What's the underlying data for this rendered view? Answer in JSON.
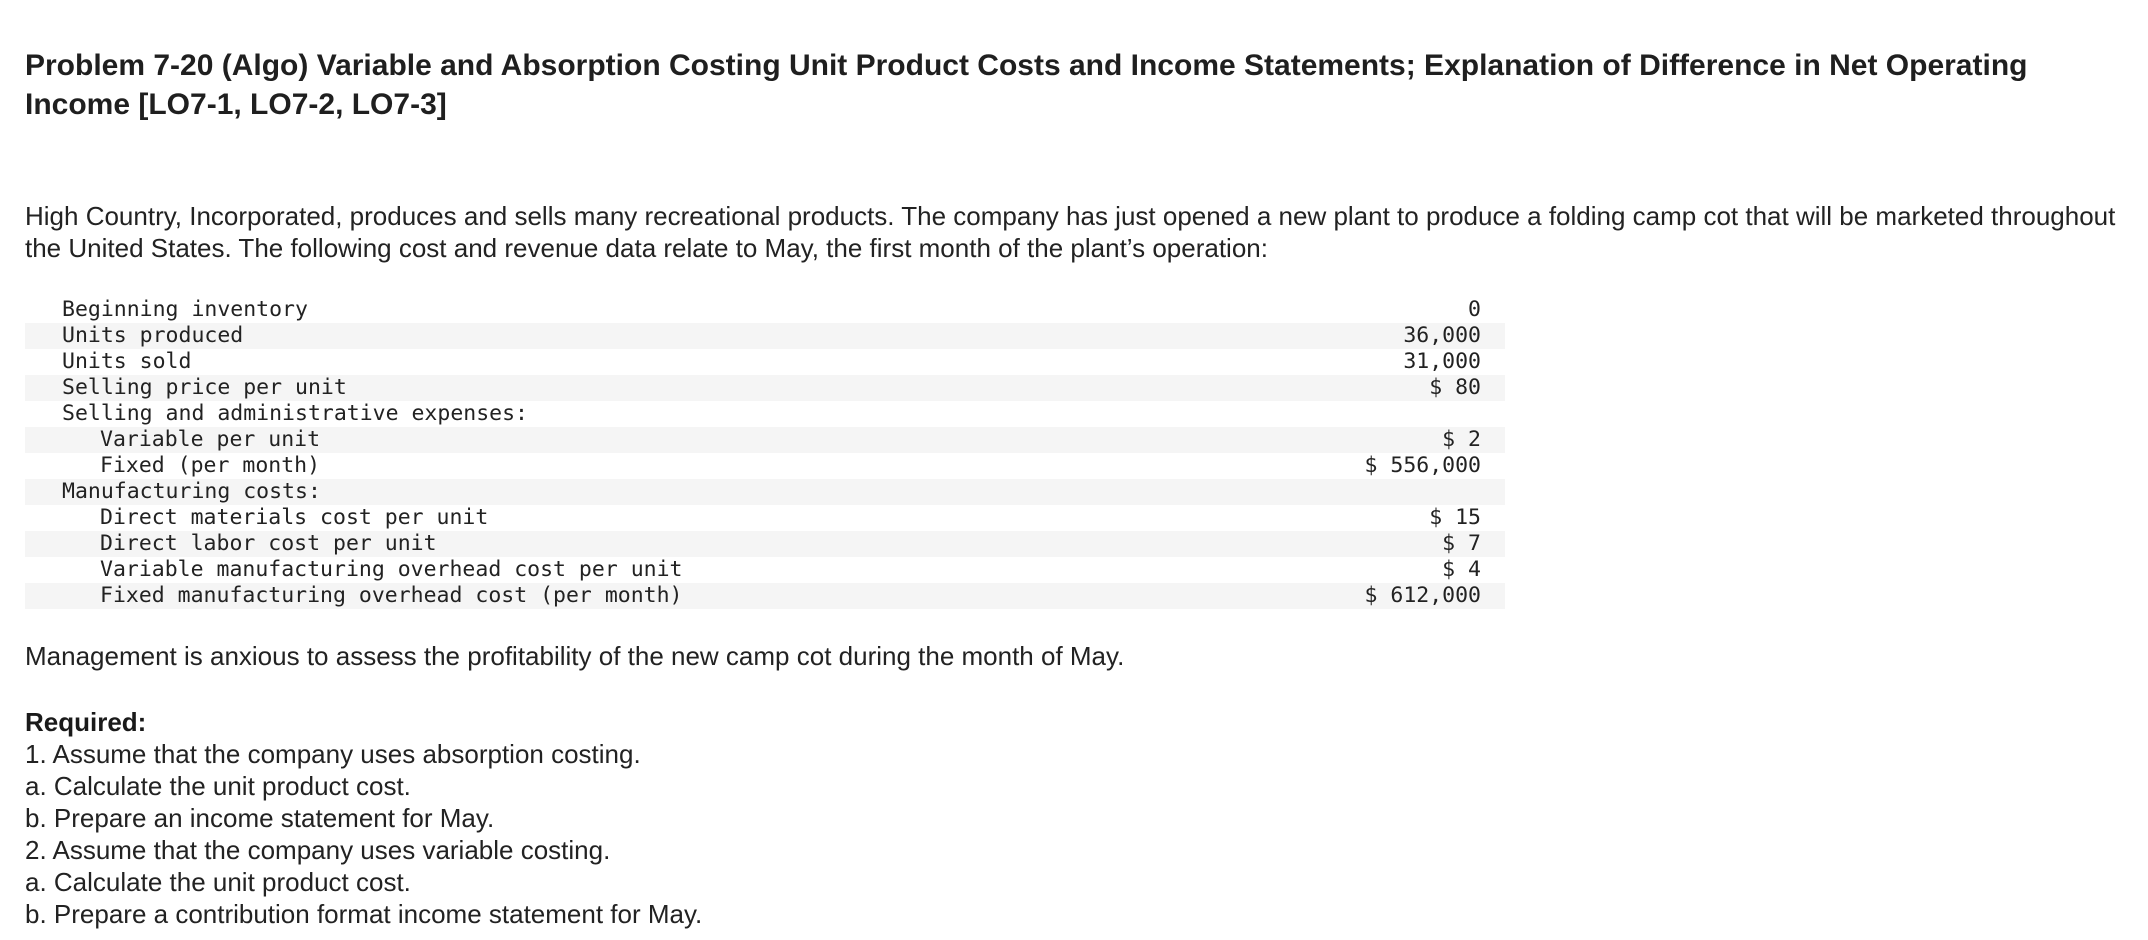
{
  "title": "Problem 7-20 (Algo) Variable and Absorption Costing Unit Product Costs and Income Statements; Explanation of Difference in Net Operating Income [LO7-1, LO7-2, LO7-3]",
  "intro": "High Country, Incorporated, produces and sells many recreational products. The company has just opened a new plant to produce a folding camp cot that will be marketed throughout the United States. The following cost and revenue data relate to May, the first month of the plant’s operation:",
  "table": {
    "rows": [
      {
        "label": "Beginning inventory",
        "value": "0"
      },
      {
        "label": "Units produced",
        "value": "36,000"
      },
      {
        "label": "Units sold",
        "value": "31,000"
      },
      {
        "label": "Selling price per unit",
        "value": "$ 80"
      },
      {
        "label": "Selling and administrative expenses:",
        "value": ""
      },
      {
        "label": "Variable per unit",
        "value": "$ 2"
      },
      {
        "label": "Fixed (per month)",
        "value": "$ 556,000"
      },
      {
        "label": "Manufacturing costs:",
        "value": ""
      },
      {
        "label": "Direct materials cost per unit",
        "value": "$ 15"
      },
      {
        "label": "Direct labor cost per unit",
        "value": "$ 7"
      },
      {
        "label": "Variable manufacturing overhead cost per unit",
        "value": "$ 4"
      },
      {
        "label": "Fixed manufacturing overhead cost (per month)",
        "value": "$ 612,000"
      }
    ]
  },
  "note": "Management is anxious to assess the profitability of the new camp cot during the month of May.",
  "required": {
    "heading": "Required:",
    "items": [
      "1. Assume that the company uses absorption costing.",
      "a. Calculate the unit product cost.",
      "b. Prepare an income statement for May.",
      "2. Assume that the company uses variable costing.",
      "a. Calculate the unit product cost.",
      "b. Prepare a contribution format income statement for May."
    ]
  }
}
